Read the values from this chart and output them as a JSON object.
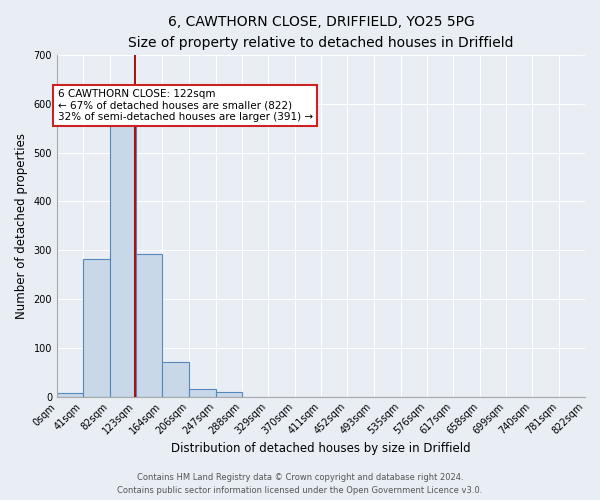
{
  "title_line1": "6, CAWTHORN CLOSE, DRIFFIELD, YO25 5PG",
  "title_line2": "Size of property relative to detached houses in Driffield",
  "xlabel": "Distribution of detached houses by size in Driffield",
  "ylabel": "Number of detached properties",
  "footnote1": "Contains HM Land Registry data © Crown copyright and database right 2024.",
  "footnote2": "Contains public sector information licensed under the Open Government Licence v3.0.",
  "bin_edges": [
    0,
    41,
    82,
    123,
    164,
    206,
    247,
    288,
    329,
    370,
    411,
    452,
    493,
    535,
    576,
    617,
    658,
    699,
    740,
    781,
    822
  ],
  "bar_heights": [
    8,
    282,
    567,
    292,
    70,
    16,
    9,
    0,
    0,
    0,
    0,
    0,
    0,
    0,
    0,
    0,
    0,
    0,
    0,
    0
  ],
  "bar_color": "#c8d8e8",
  "bar_edge_color": "#5588bb",
  "bar_linewidth": 0.8,
  "vline_x": 122,
  "vline_color": "#aa1111",
  "vline_linewidth": 1.5,
  "annotation_text_line1": "6 CAWTHORN CLOSE: 122sqm",
  "annotation_text_line2": "← 67% of detached houses are smaller (822)",
  "annotation_text_line3": "32% of semi-detached houses are larger (391) →",
  "annotation_box_color": "white",
  "annotation_box_edge_color": "#cc2222",
  "ylim": [
    0,
    700
  ],
  "yticks": [
    0,
    100,
    200,
    300,
    400,
    500,
    600,
    700
  ],
  "tick_labels": [
    "0sqm",
    "41sqm",
    "82sqm",
    "123sqm",
    "164sqm",
    "206sqm",
    "247sqm",
    "288sqm",
    "329sqm",
    "370sqm",
    "411sqm",
    "452sqm",
    "493sqm",
    "535sqm",
    "576sqm",
    "617sqm",
    "658sqm",
    "699sqm",
    "740sqm",
    "781sqm",
    "822sqm"
  ],
  "bg_color": "#e8eef4",
  "plot_bg_color": "#e8eef4",
  "title_fontsize": 10,
  "subtitle_fontsize": 9,
  "axis_label_fontsize": 8.5,
  "tick_fontsize": 7,
  "annotation_fontsize": 7.5,
  "footnote_fontsize": 6
}
